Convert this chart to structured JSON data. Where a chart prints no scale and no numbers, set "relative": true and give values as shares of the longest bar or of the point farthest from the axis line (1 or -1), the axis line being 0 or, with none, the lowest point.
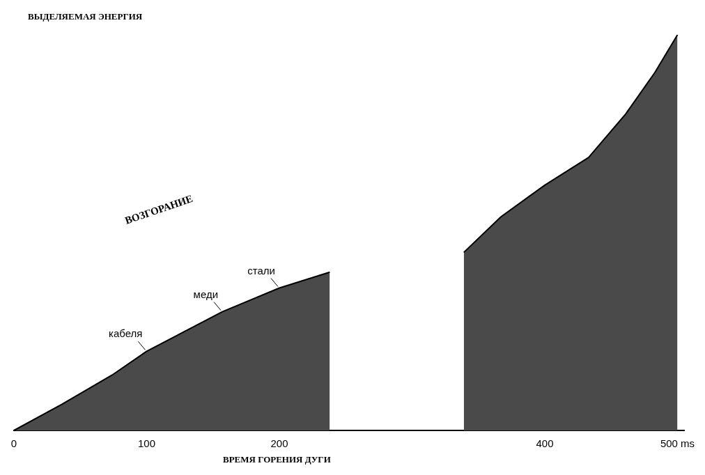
{
  "chart_data": {
    "type": "area",
    "relative": true,
    "ylabel": "ВЫДЕЛЯЕМАЯ ЭНЕРГИЯ",
    "xlabel": "ВРЕМЯ ГОРЕНИЯ ДУГИ",
    "xlim": [
      0,
      505
    ],
    "xticks": [
      0,
      100,
      200,
      400,
      {
        "value": 500,
        "label": "500 ms"
      }
    ],
    "tick_labels": "x",
    "legend": false,
    "grid": false,
    "series": [
      {
        "color": "#4a4a4a",
        "x": [
          0,
          36,
          74,
          100,
          157,
          200,
          238
        ],
        "values": [
          0,
          0.066,
          0.14,
          0.2,
          0.3,
          0.36,
          0.4
        ]
      },
      {
        "color": "#4a4a4a",
        "x": [
          339,
          367,
          400,
          433,
          461,
          483,
          500
        ],
        "values": [
          0.45,
          0.54,
          0.62,
          0.69,
          0.8,
          0.905,
          1
        ]
      }
    ],
    "annotations": [
      "ВОЗГОРАНИЕ",
      {
        "text": "кабеля",
        "x": 100,
        "y": 0.2
      },
      {
        "text": "меди",
        "x": 157,
        "y": 0.3
      },
      {
        "text": "стали",
        "x": 200,
        "y": 0.36
      }
    ]
  }
}
